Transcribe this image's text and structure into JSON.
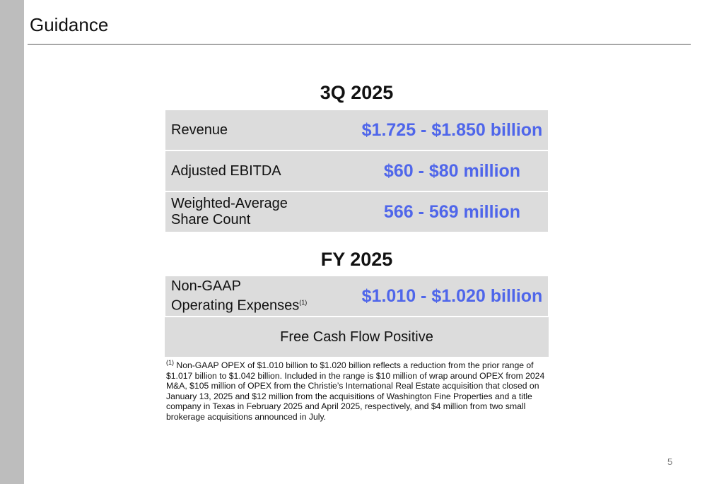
{
  "title": "Guidance",
  "q3": {
    "heading": "3Q 2025",
    "rows": [
      {
        "label": "Revenue",
        "value": "$1.725 - $1.850 billion"
      },
      {
        "label": "Adjusted EBITDA",
        "value": "$60 - $80 million"
      },
      {
        "label_line1": "Weighted-Average",
        "label_line2": "Share Count",
        "value": "566 - 569 million"
      }
    ]
  },
  "fy": {
    "heading": "FY 2025",
    "opex": {
      "label_line1": "Non-GAAP",
      "label_line2": "Operating Expenses",
      "sup": "(1)",
      "value": "$1.010 - $1.020 billion"
    },
    "fcf": "Free Cash Flow Positive"
  },
  "footnote": {
    "sup": "(1)",
    "text": " Non-GAAP OPEX of $1.010 billion to $1.020 billion reflects a reduction from the prior range of $1.017 billion to $1.042 billion. Included in the range is $10 million of wrap around OPEX from 2024 M&A, $105 million of OPEX from the Christie’s International Real Estate acquisition that closed on January 13, 2025 and $12 million from the acquisitions of Washington Fine Properties and a title company in Texas in February 2025 and April 2025, respectively, and $4 million from two small brokerage acquisitions announced in July."
  },
  "page_number": "5",
  "colors": {
    "accent": "#4f66ea",
    "row_bg": "#dcdcdc"
  }
}
